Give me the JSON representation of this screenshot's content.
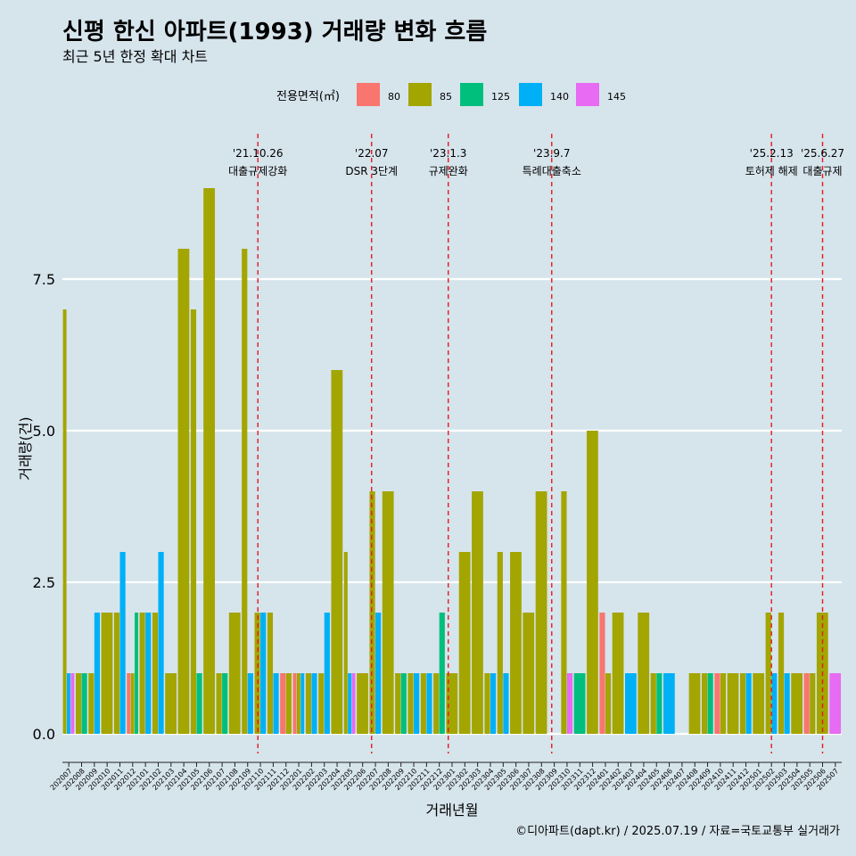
{
  "chart_data": {
    "type": "bar",
    "title": "신평 한신 아파트(1993) 거래량 변화 흐름",
    "subtitle": "최근 5년 한정 확대 차트",
    "xlabel": "거래년월",
    "ylabel": "거래량(건)",
    "ylim": [
      -0.5,
      10
    ],
    "yticks": [
      "0.0",
      "2.5",
      "5.0",
      "7.5"
    ],
    "grid": "horizontal",
    "legend": {
      "title": "전용면적(㎡)",
      "placement": "top",
      "entries": [
        {
          "label": "80",
          "color": "#f8766d"
        },
        {
          "label": "85",
          "color": "#a3a500"
        },
        {
          "label": "125",
          "color": "#00bf7d"
        },
        {
          "label": "140",
          "color": "#00b0f6"
        },
        {
          "label": "145",
          "color": "#e76bf3"
        }
      ]
    },
    "months": [
      "202007",
      "202008",
      "202009",
      "202010",
      "202011",
      "202012",
      "202101",
      "202102",
      "202103",
      "202104",
      "202105",
      "202106",
      "202107",
      "202108",
      "202109",
      "202110",
      "202111",
      "202112",
      "202201",
      "202202",
      "202203",
      "202204",
      "202205",
      "202206",
      "202207",
      "202208",
      "202209",
      "202210",
      "202211",
      "202212",
      "202301",
      "202302",
      "202303",
      "202304",
      "202305",
      "202306",
      "202307",
      "202308",
      "202309",
      "202310",
      "202311",
      "202312",
      "202401",
      "202402",
      "202403",
      "202404",
      "202405",
      "202406",
      "202407",
      "202408",
      "202409",
      "202410",
      "202411",
      "202412",
      "202501",
      "202502",
      "202503",
      "202504",
      "202505",
      "202506",
      "202507"
    ],
    "series": [
      {
        "name": "80",
        "values": [
          0,
          0,
          0,
          0,
          0,
          1,
          0,
          0,
          0,
          0,
          0,
          0,
          0,
          0,
          0,
          0,
          0,
          1,
          1,
          0,
          0,
          0,
          0,
          0,
          0,
          0,
          0,
          0,
          0,
          0,
          0,
          0,
          0,
          0,
          0,
          0,
          0,
          0,
          0,
          0,
          0,
          0,
          2,
          0,
          0,
          0,
          0,
          0,
          0,
          0,
          0,
          1,
          0,
          0,
          0,
          0,
          0,
          0,
          1,
          0,
          0
        ]
      },
      {
        "name": "85",
        "values": [
          7,
          1,
          1,
          2,
          2,
          1,
          2,
          2,
          1,
          8,
          7,
          9,
          1,
          2,
          8,
          2,
          2,
          1,
          1,
          1,
          1,
          6,
          3,
          1,
          4,
          4,
          1,
          1,
          1,
          1,
          1,
          3,
          4,
          1,
          3,
          3,
          2,
          4,
          0,
          4,
          0,
          5,
          1,
          2,
          0,
          2,
          1,
          0,
          0,
          1,
          1,
          1,
          1,
          1,
          1,
          2,
          2,
          1,
          1,
          2,
          0
        ]
      },
      {
        "name": "125",
        "values": [
          0,
          1,
          0,
          0,
          0,
          2,
          0,
          0,
          0,
          0,
          1,
          0,
          1,
          0,
          0,
          0,
          0,
          0,
          0,
          0,
          0,
          0,
          0,
          0,
          0,
          0,
          1,
          0,
          0,
          2,
          0,
          0,
          0,
          0,
          0,
          0,
          0,
          0,
          0,
          0,
          1,
          0,
          0,
          0,
          0,
          0,
          1,
          0,
          0,
          0,
          1,
          0,
          0,
          0,
          0,
          0,
          0,
          0,
          0,
          0,
          0
        ]
      },
      {
        "name": "140",
        "values": [
          1,
          0,
          2,
          0,
          3,
          0,
          2,
          3,
          0,
          0,
          0,
          0,
          0,
          0,
          1,
          2,
          1,
          0,
          1,
          1,
          2,
          0,
          1,
          0,
          2,
          0,
          0,
          1,
          1,
          0,
          0,
          0,
          0,
          1,
          1,
          0,
          0,
          0,
          0,
          0,
          0,
          0,
          0,
          0,
          1,
          0,
          0,
          1,
          0,
          0,
          0,
          0,
          0,
          1,
          0,
          1,
          1,
          0,
          0,
          0,
          0
        ]
      },
      {
        "name": "145",
        "values": [
          1,
          0,
          0,
          0,
          0,
          0,
          0,
          0,
          0,
          0,
          0,
          0,
          0,
          0,
          0,
          0,
          0,
          0,
          0,
          0,
          0,
          0,
          1,
          0,
          0,
          0,
          0,
          0,
          0,
          0,
          0,
          0,
          0,
          0,
          0,
          0,
          0,
          0,
          0,
          1,
          0,
          0,
          0,
          0,
          0,
          0,
          0,
          0,
          0,
          0,
          0,
          0,
          0,
          0,
          0,
          0,
          0,
          0,
          0,
          0,
          1
        ]
      }
    ],
    "annotations": [
      {
        "date": "'21.10.26",
        "label": "대출규제강화",
        "month_index": 15.3
      },
      {
        "date": "'22.07",
        "label": "DSR 3단계",
        "month_index": 24.2
      },
      {
        "date": "'23.1.3",
        "label": "규제완화",
        "month_index": 30.2
      },
      {
        "date": "'23.9.7",
        "label": "특례대출축소",
        "month_index": 38.3
      },
      {
        "date": "'25.2.13",
        "label": "토허제 해제",
        "month_index": 55.5
      },
      {
        "date": "'25.6.27",
        "label": "대출규제",
        "month_index": 59.5
      }
    ],
    "caption": "©디아파트(dapt.kr) / 2025.07.19 / 자료=국토교통부 실거래가"
  }
}
